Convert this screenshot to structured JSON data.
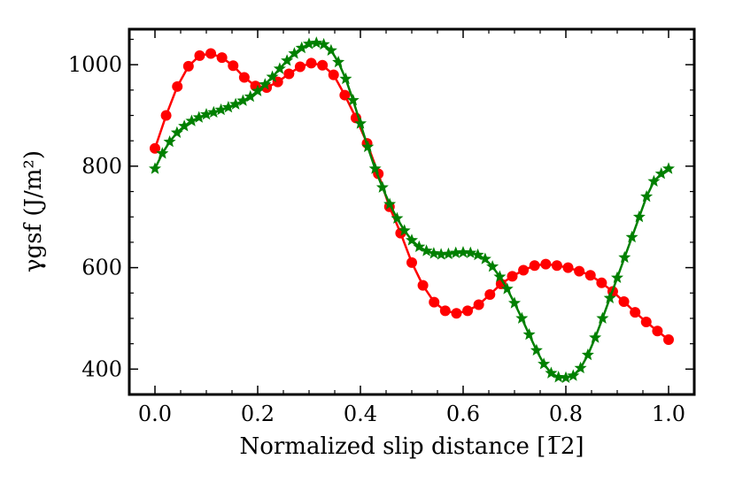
{
  "chart_data": {
    "type": "line",
    "title": "",
    "xlabel": "Normalized slip distance [1̅2]",
    "ylabel": "γgsf (J/m²)",
    "xlim": [
      -0.05,
      1.05
    ],
    "ylim": [
      350,
      1070
    ],
    "xticks": [
      0.0,
      0.2,
      0.4,
      0.6,
      0.8,
      1.0
    ],
    "xtick_labels": [
      "0.0",
      "0.2",
      "0.4",
      "0.6",
      "0.8",
      "1.0"
    ],
    "yticks": [
      400,
      600,
      800,
      1000
    ],
    "ytick_labels": [
      "400",
      "600",
      "800",
      "1000"
    ],
    "grid": false,
    "legend": null,
    "series": [
      {
        "name": "series-circles",
        "color": "#ff0000",
        "marker": "circle",
        "x": [
          0.0,
          0.0217,
          0.0435,
          0.0652,
          0.087,
          0.1087,
          0.1304,
          0.1522,
          0.1739,
          0.1957,
          0.2174,
          0.2391,
          0.2609,
          0.2826,
          0.3043,
          0.3261,
          0.3478,
          0.3696,
          0.3913,
          0.413,
          0.4348,
          0.4565,
          0.4783,
          0.5,
          0.5217,
          0.5435,
          0.5652,
          0.587,
          0.6087,
          0.6304,
          0.6522,
          0.6739,
          0.6957,
          0.7174,
          0.7391,
          0.7609,
          0.7826,
          0.8043,
          0.8261,
          0.8478,
          0.8696,
          0.8913,
          0.913,
          0.9348,
          0.9565,
          0.9783,
          1.0
        ],
        "values": [
          835,
          900,
          957,
          997,
          1018,
          1022,
          1014,
          998,
          975,
          958,
          955,
          966,
          982,
          996,
          1003,
          999,
          980,
          940,
          895,
          845,
          785,
          720,
          668,
          610,
          565,
          532,
          515,
          510,
          515,
          527,
          547,
          568,
          583,
          595,
          604,
          607,
          604,
          600,
          593,
          585,
          570,
          553,
          533,
          512,
          493,
          475,
          458
        ]
      },
      {
        "name": "series-stars",
        "color": "#008000",
        "marker": "star",
        "x": [
          0.0,
          0.0143,
          0.0286,
          0.0429,
          0.0571,
          0.0714,
          0.0857,
          0.1,
          0.1143,
          0.1286,
          0.1429,
          0.1571,
          0.1714,
          0.1857,
          0.2,
          0.2143,
          0.2286,
          0.2429,
          0.2571,
          0.2714,
          0.2857,
          0.3,
          0.3143,
          0.3286,
          0.3429,
          0.3571,
          0.3714,
          0.3857,
          0.4,
          0.4143,
          0.4286,
          0.4429,
          0.4571,
          0.4714,
          0.4857,
          0.5,
          0.5143,
          0.5286,
          0.5429,
          0.5571,
          0.5714,
          0.5857,
          0.6,
          0.6143,
          0.6286,
          0.6429,
          0.6571,
          0.6714,
          0.6857,
          0.7,
          0.7143,
          0.7286,
          0.7429,
          0.7571,
          0.7714,
          0.7857,
          0.8,
          0.8143,
          0.8286,
          0.8429,
          0.8571,
          0.8714,
          0.8857,
          0.9,
          0.9143,
          0.9286,
          0.9429,
          0.9571,
          0.9714,
          0.9857,
          1.0
        ],
        "values": [
          795,
          825,
          848,
          866,
          879,
          889,
          896,
          902,
          906,
          911,
          916,
          922,
          929,
          937,
          948,
          961,
          976,
          992,
          1008,
          1022,
          1033,
          1041,
          1043,
          1040,
          1028,
          1005,
          972,
          930,
          884,
          838,
          795,
          758,
          725,
          697,
          673,
          654,
          641,
          633,
          628,
          626,
          627,
          629,
          630,
          629,
          625,
          617,
          602,
          582,
          558,
          530,
          500,
          468,
          437,
          410,
          392,
          384,
          383,
          387,
          402,
          428,
          462,
          500,
          540,
          580,
          620,
          660,
          700,
          740,
          770,
          785,
          795
        ]
      }
    ]
  }
}
